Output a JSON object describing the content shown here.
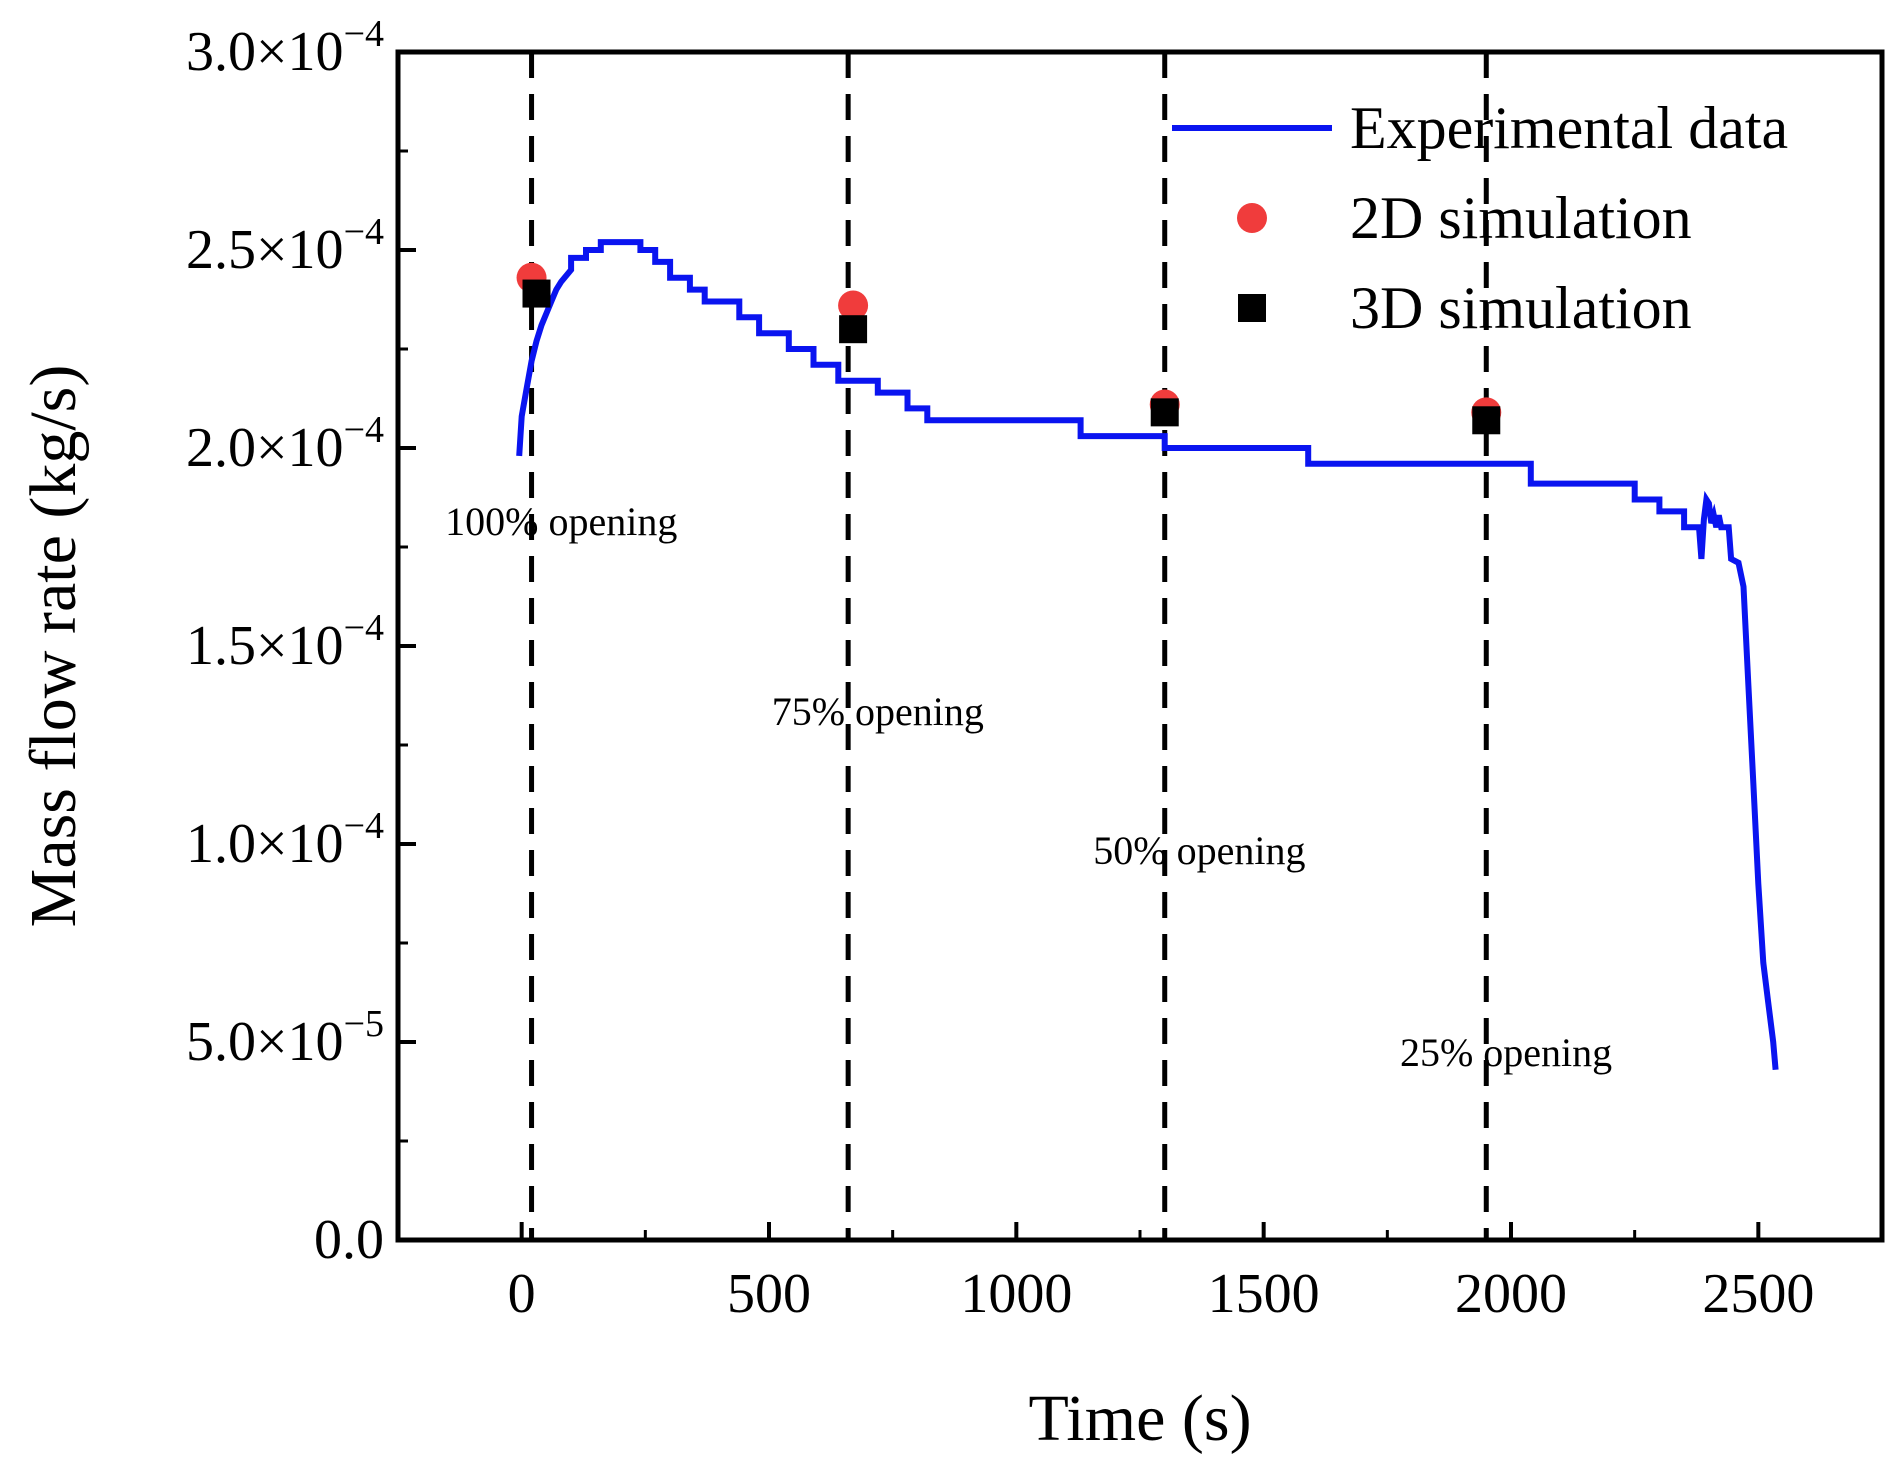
{
  "chart_data": {
    "type": "line",
    "xlabel": "Time (s)",
    "ylabel": "Mass flow rate (kg/s)",
    "xlim": [
      -250,
      2750
    ],
    "ylim": [
      0,
      0.0003
    ],
    "x_ticks": [
      0,
      500,
      1000,
      1500,
      2000,
      2500
    ],
    "x_tick_labels": [
      "0",
      "500",
      "1000",
      "1500",
      "2000",
      "2500"
    ],
    "y_ticks": [
      0,
      5e-05,
      0.0001,
      0.00015,
      0.0002,
      0.00025,
      0.0003
    ],
    "y_tick_labels": [
      {
        "mant": "0.0",
        "exp": ""
      },
      {
        "mant": "5.0×10",
        "exp": "−5"
      },
      {
        "mant": "1.0×10",
        "exp": "−4"
      },
      {
        "mant": "1.5×10",
        "exp": "−4"
      },
      {
        "mant": "2.0×10",
        "exp": "−4"
      },
      {
        "mant": "2.5×10",
        "exp": "−4"
      },
      {
        "mant": "3.0×10",
        "exp": "−4"
      }
    ],
    "legend_position": "top-right",
    "series": [
      {
        "name": "Experimental data",
        "style": "line",
        "color": "#0a14f0",
        "x": [
          -5,
          0,
          10,
          20,
          30,
          40,
          50,
          60,
          70,
          80,
          100,
          100,
          130,
          130,
          160,
          160,
          240,
          240,
          270,
          270,
          300,
          300,
          340,
          340,
          370,
          370,
          440,
          440,
          480,
          480,
          540,
          540,
          590,
          590,
          640,
          640,
          720,
          720,
          780,
          780,
          820,
          820,
          1130,
          1130,
          1300,
          1300,
          1590,
          1590,
          2040,
          2040,
          2250,
          2250,
          2300,
          2300,
          2350,
          2350,
          2380,
          2385,
          2390,
          2395,
          2400,
          2405,
          2410,
          2415,
          2420,
          2425,
          2440,
          2445,
          2460,
          2470,
          2480,
          2490,
          2500,
          2510,
          2520,
          2530,
          2535
        ],
        "y": [
          0.000198,
          0.000208,
          0.000215,
          0.000222,
          0.000227,
          0.000231,
          0.000234,
          0.000237,
          0.00024,
          0.000242,
          0.000245,
          0.000248,
          0.000248,
          0.00025,
          0.00025,
          0.000252,
          0.000252,
          0.00025,
          0.00025,
          0.000247,
          0.000247,
          0.000243,
          0.000243,
          0.00024,
          0.00024,
          0.000237,
          0.000237,
          0.000233,
          0.000233,
          0.000229,
          0.000229,
          0.000225,
          0.000225,
          0.000221,
          0.000221,
          0.000217,
          0.000217,
          0.000214,
          0.000214,
          0.00021,
          0.00021,
          0.000207,
          0.000207,
          0.000203,
          0.000203,
          0.0002,
          0.0002,
          0.000196,
          0.000196,
          0.000191,
          0.000191,
          0.000187,
          0.000187,
          0.000184,
          0.000184,
          0.00018,
          0.00018,
          0.000172,
          0.000182,
          0.000187,
          0.000186,
          0.000181,
          0.000183,
          0.00018,
          0.000183,
          0.00018,
          0.00018,
          0.000172,
          0.000171,
          0.000165,
          0.00014,
          0.000115,
          9e-05,
          7e-05,
          6e-05,
          5e-05,
          4.3e-05
        ]
      },
      {
        "name": "2D simulation",
        "style": "circle",
        "color": "#f03c3c",
        "x": [
          20,
          670,
          1300,
          1950
        ],
        "y": [
          0.000243,
          0.000236,
          0.000211,
          0.000209
        ]
      },
      {
        "name": "3D simulation",
        "style": "square",
        "color": "#000000",
        "x": [
          30,
          670,
          1300,
          1950
        ],
        "y": [
          0.000239,
          0.00023,
          0.000209,
          0.000207
        ]
      }
    ],
    "vlines": [
      20,
      660,
      1300,
      1950
    ],
    "annotations": [
      {
        "text": "100% opening",
        "x": 80,
        "y": 0.000178
      },
      {
        "text": "75% opening",
        "x": 720,
        "y": 0.00013
      },
      {
        "text": "50% opening",
        "x": 1370,
        "y": 9.5e-05
      },
      {
        "text": "25% opening",
        "x": 1990,
        "y": 4.4e-05
      }
    ]
  }
}
